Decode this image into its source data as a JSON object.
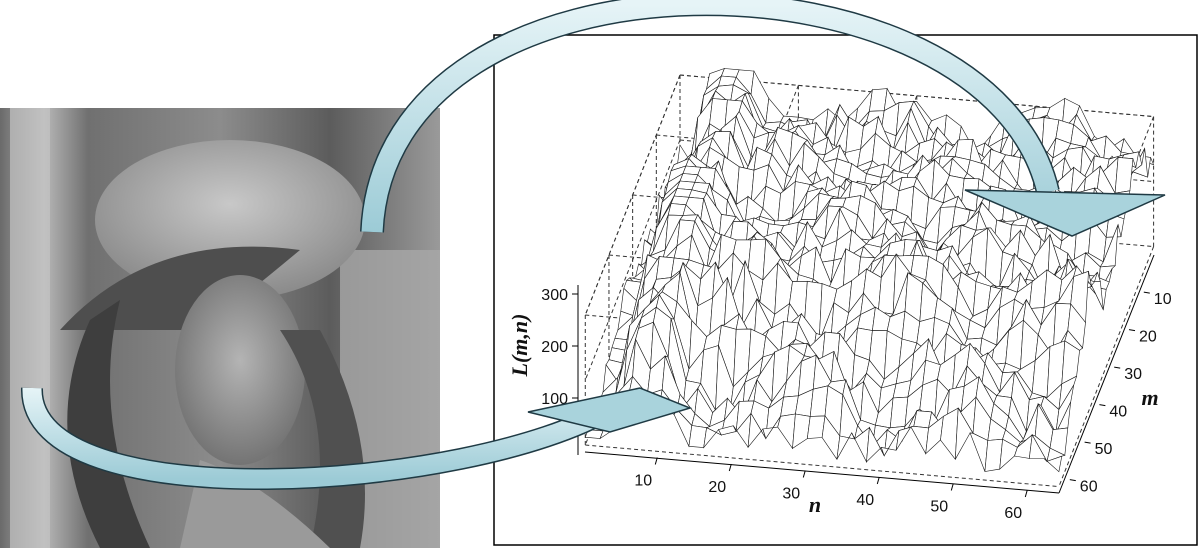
{
  "plot": {
    "z_axis": {
      "label": "L(m,n)",
      "ticks": [
        100,
        200,
        300
      ]
    },
    "n_axis": {
      "label": "n",
      "ticks": [
        10,
        20,
        30,
        40,
        50,
        60
      ]
    },
    "m_axis": {
      "label": "m",
      "ticks": [
        10,
        20,
        30,
        40,
        50,
        60
      ]
    }
  }
}
